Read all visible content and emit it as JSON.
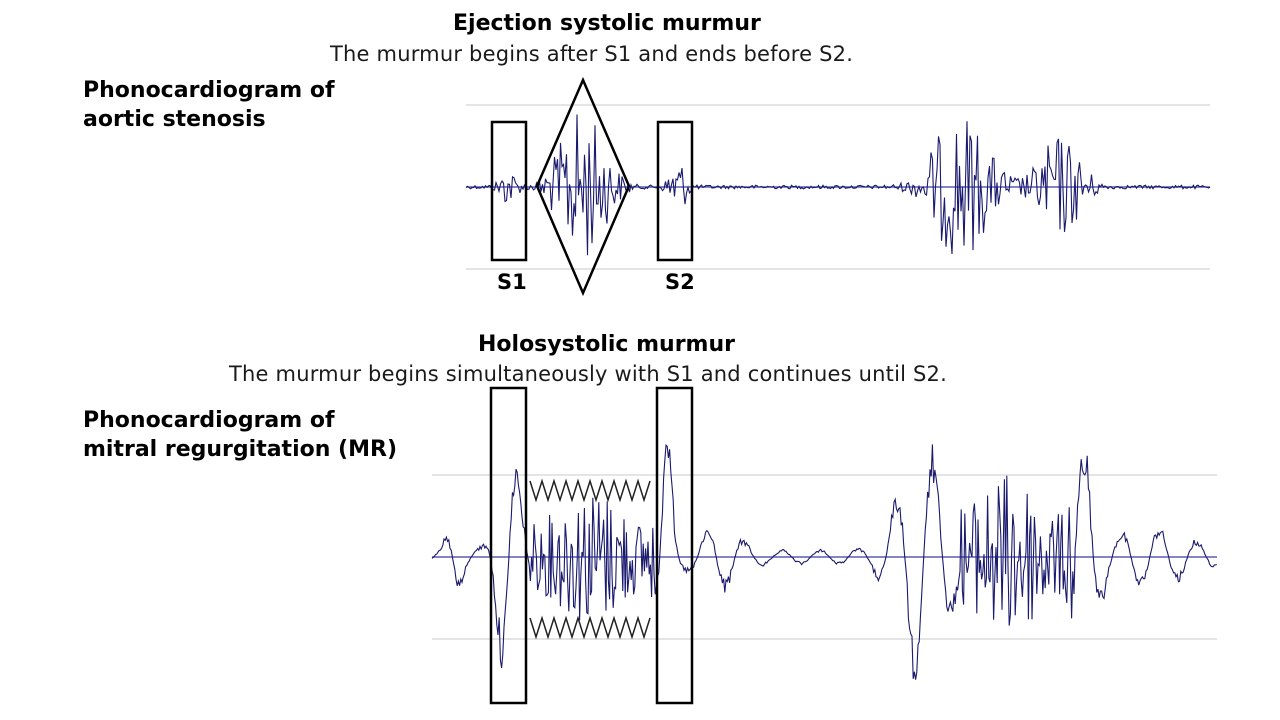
{
  "aortic_stenosis": {
    "title": "Ejection systolic murmur",
    "subtitle": "The murmur begins after S1 and ends before S2.",
    "label_line1": "Phonocardiogram of",
    "label_line2": "aortic stenosis",
    "s1_label": "S1",
    "s2_label": "S2"
  },
  "mitral_regurgitation": {
    "title": "Holosystolic murmur",
    "subtitle": "The murmur begins simultaneously with S1 and continues until S2.",
    "label_line1": "Phonocardiogram of",
    "label_line2": "mitral regurgitation (MR)"
  },
  "colors": {
    "waveform": "#1a1a6e",
    "baseline": "#3a3aa8",
    "gridline": "#c8c8c8",
    "annotation": "#000000"
  }
}
